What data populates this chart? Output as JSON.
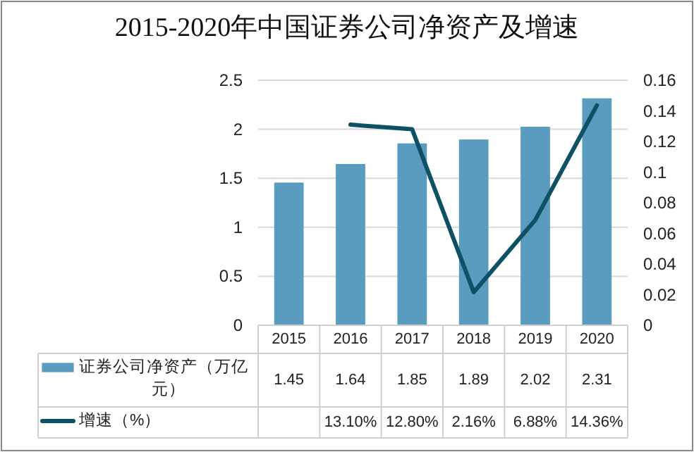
{
  "chart_data": {
    "type": "bar",
    "title": "2015-2020年中国证券公司净资产及增速",
    "categories": [
      "2015",
      "2016",
      "2017",
      "2018",
      "2019",
      "2020"
    ],
    "series": [
      {
        "name": "证券公司净资产（万亿元）",
        "color": "#5a9cc0",
        "values": [
          1.45,
          1.64,
          1.85,
          1.89,
          2.02,
          2.31
        ],
        "value_labels": [
          "1.45",
          "1.64",
          "1.85",
          "1.89",
          "2.02",
          "2.31"
        ]
      },
      {
        "name": "增速（%）",
        "type": "line",
        "axis": "y2",
        "color": "#0e5064",
        "values": [
          null,
          0.131,
          0.128,
          0.0216,
          0.0688,
          0.1436
        ],
        "value_labels": [
          null,
          "13.10%",
          "12.80%",
          "2.16%",
          "6.88%",
          "14.36%"
        ]
      }
    ],
    "ylim": [
      0,
      2.5
    ],
    "yticks": [
      0,
      0.5,
      1,
      1.5,
      2,
      2.5
    ],
    "y2lim": [
      0,
      0.16
    ],
    "y2ticks": [
      0,
      0.02,
      0.04,
      0.06,
      0.08,
      0.1,
      0.12,
      0.14,
      0.16
    ],
    "grid": "y",
    "legend": "bottom",
    "marker": "none",
    "line_style": "solid"
  }
}
